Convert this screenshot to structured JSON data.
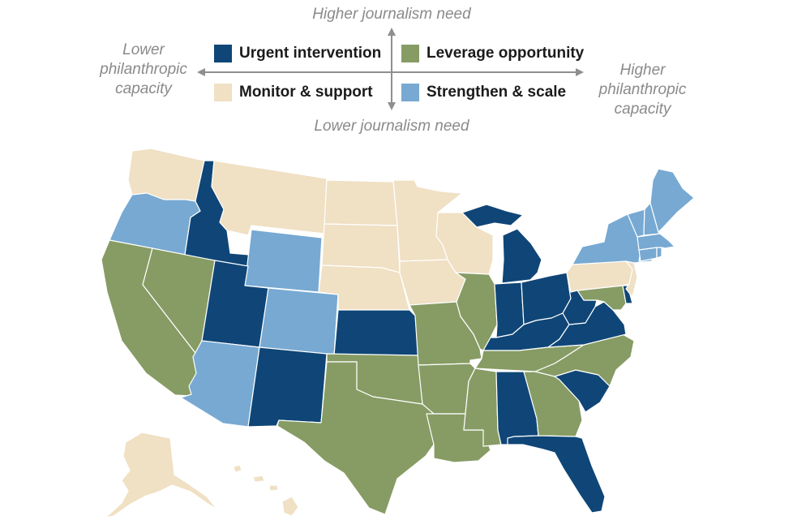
{
  "axes": {
    "top": "Higher journalism need",
    "bottom": "Lower journalism need",
    "left_line1": "Lower",
    "left_line2": "philanthropic",
    "left_line3": "capacity",
    "right_line1": "Higher",
    "right_line2": "philanthropic",
    "right_line3": "capacity"
  },
  "legend": {
    "urgent": "Urgent intervention",
    "leverage": "Leverage opportunity",
    "monitor": "Monitor & support",
    "strengthen": "Strengthen & scale"
  },
  "colors": {
    "urgent": "#0f4677",
    "leverage": "#879c64",
    "monitor": "#f0e0c4",
    "strengthen": "#77a9d2",
    "axis": "#8f8f8f"
  },
  "categories": {
    "WA": "monitor",
    "OR": "strengthen",
    "CA": "leverage",
    "ID": "urgent",
    "NV": "leverage",
    "MT": "monitor",
    "WY": "strengthen",
    "UT": "urgent",
    "AZ": "strengthen",
    "CO": "strengthen",
    "NM": "urgent",
    "ND": "monitor",
    "SD": "monitor",
    "NE": "monitor",
    "KS": "urgent",
    "OK": "leverage",
    "TX": "leverage",
    "MN": "monitor",
    "IA": "monitor",
    "MO": "leverage",
    "AR": "leverage",
    "LA": "leverage",
    "WI": "monitor",
    "IL": "leverage",
    "MI": "urgent",
    "IN": "urgent",
    "OH": "urgent",
    "KY": "urgent",
    "TN": "leverage",
    "MS": "leverage",
    "AL": "urgent",
    "GA": "leverage",
    "FL": "urgent",
    "SC": "urgent",
    "NC": "leverage",
    "VA": "urgent",
    "WV": "urgent",
    "MD": "leverage",
    "DE": "urgent",
    "PA": "monitor",
    "NJ": "monitor",
    "NY": "strengthen",
    "CT": "strengthen",
    "RI": "strengthen",
    "MA": "strengthen",
    "VT": "strengthen",
    "NH": "strengthen",
    "ME": "strengthen",
    "AK": "monitor",
    "HI": "monitor"
  }
}
